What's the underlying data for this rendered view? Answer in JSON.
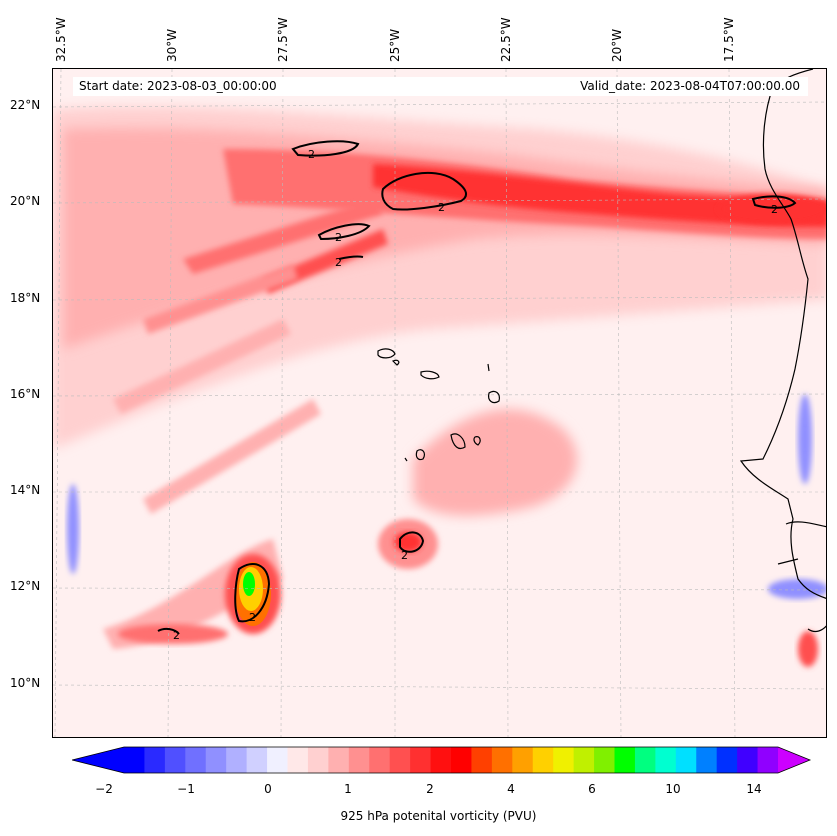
{
  "map": {
    "start_date": "Start date: 2023-08-03_00:00:00",
    "valid_date": "Valid_date: 2023-08-04T07:00:00.00",
    "lon_labels": [
      "32.5°W",
      "30°W",
      "27.5°W",
      "25°W",
      "22.5°W",
      "20°W",
      "17.5°W"
    ],
    "lat_labels": [
      "22°N",
      "20°N",
      "18°N",
      "16°N",
      "14°N",
      "12°N",
      "10°N"
    ],
    "contour_label": "2",
    "background_color": "#fff0f0",
    "coast_color": "#000000"
  },
  "colorbar": {
    "label": "925 hPa potenital vorticity (PVU)",
    "ticks": [
      "−2",
      "−1",
      "0",
      "1",
      "2",
      "4",
      "6",
      "10",
      "14"
    ],
    "colors": [
      "#0000ff",
      "#2a2aff",
      "#5050ff",
      "#7070ff",
      "#9090ff",
      "#b0b0ff",
      "#d0d0ff",
      "#f0f0ff",
      "#ffe8e8",
      "#ffd0d0",
      "#ffb0b0",
      "#ff9090",
      "#ff7070",
      "#ff5050",
      "#ff3030",
      "#ff1010",
      "#ff0000",
      "#ff4000",
      "#ff7000",
      "#ffa000",
      "#ffd000",
      "#f0f000",
      "#c0f000",
      "#80f000",
      "#00ff00",
      "#00ff80",
      "#00ffd0",
      "#00e0ff",
      "#0080ff",
      "#0030ff",
      "#4000ff",
      "#9000ff"
    ],
    "under_color": "#0000ff",
    "over_color": "#cc00ff"
  }
}
